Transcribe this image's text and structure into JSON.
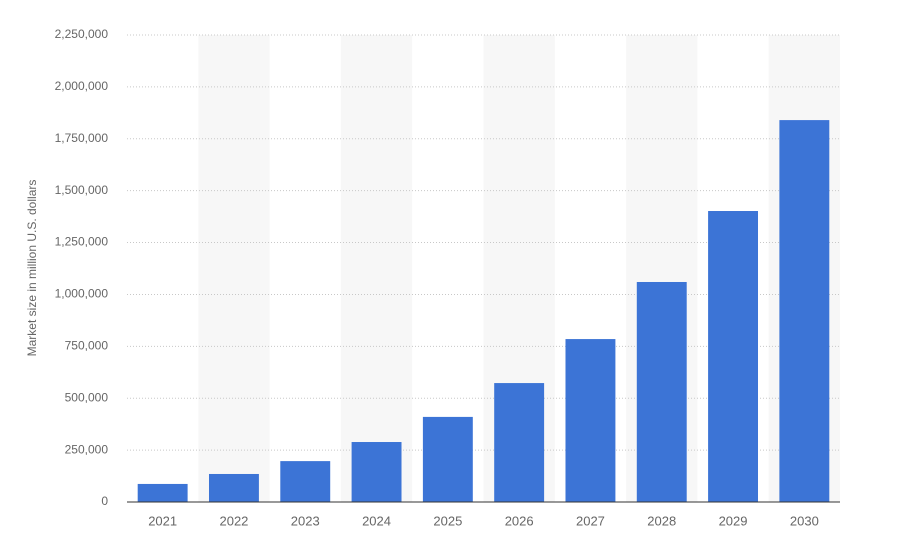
{
  "chart_data": {
    "type": "bar",
    "y_axis_label": "Market size in million U.S. dollars",
    "categories": [
      "2021",
      "2022",
      "2023",
      "2024",
      "2025",
      "2026",
      "2027",
      "2028",
      "2029",
      "2030"
    ],
    "values": [
      87000,
      135000,
      197000,
      289000,
      410000,
      573000,
      785000,
      1060000,
      1402000,
      1840000
    ],
    "color": "#3c74d6",
    "ylim": [
      0,
      2250000
    ],
    "yticks": [
      0,
      {
        "value": 250000,
        "label": "250,000"
      },
      {
        "value": 500000,
        "label": "500,000"
      },
      {
        "value": 750000,
        "label": "750,000"
      },
      {
        "value": 1000000,
        "label": "1,000,000"
      },
      {
        "value": 1250000,
        "label": "1,250,000"
      },
      {
        "value": 1500000,
        "label": "1,500,000"
      },
      {
        "value": 1750000,
        "label": "1,750,000"
      },
      {
        "value": 2000000,
        "label": "2,000,000"
      },
      {
        "value": 2250000,
        "label": "2,250,000"
      }
    ],
    "grid": true
  }
}
